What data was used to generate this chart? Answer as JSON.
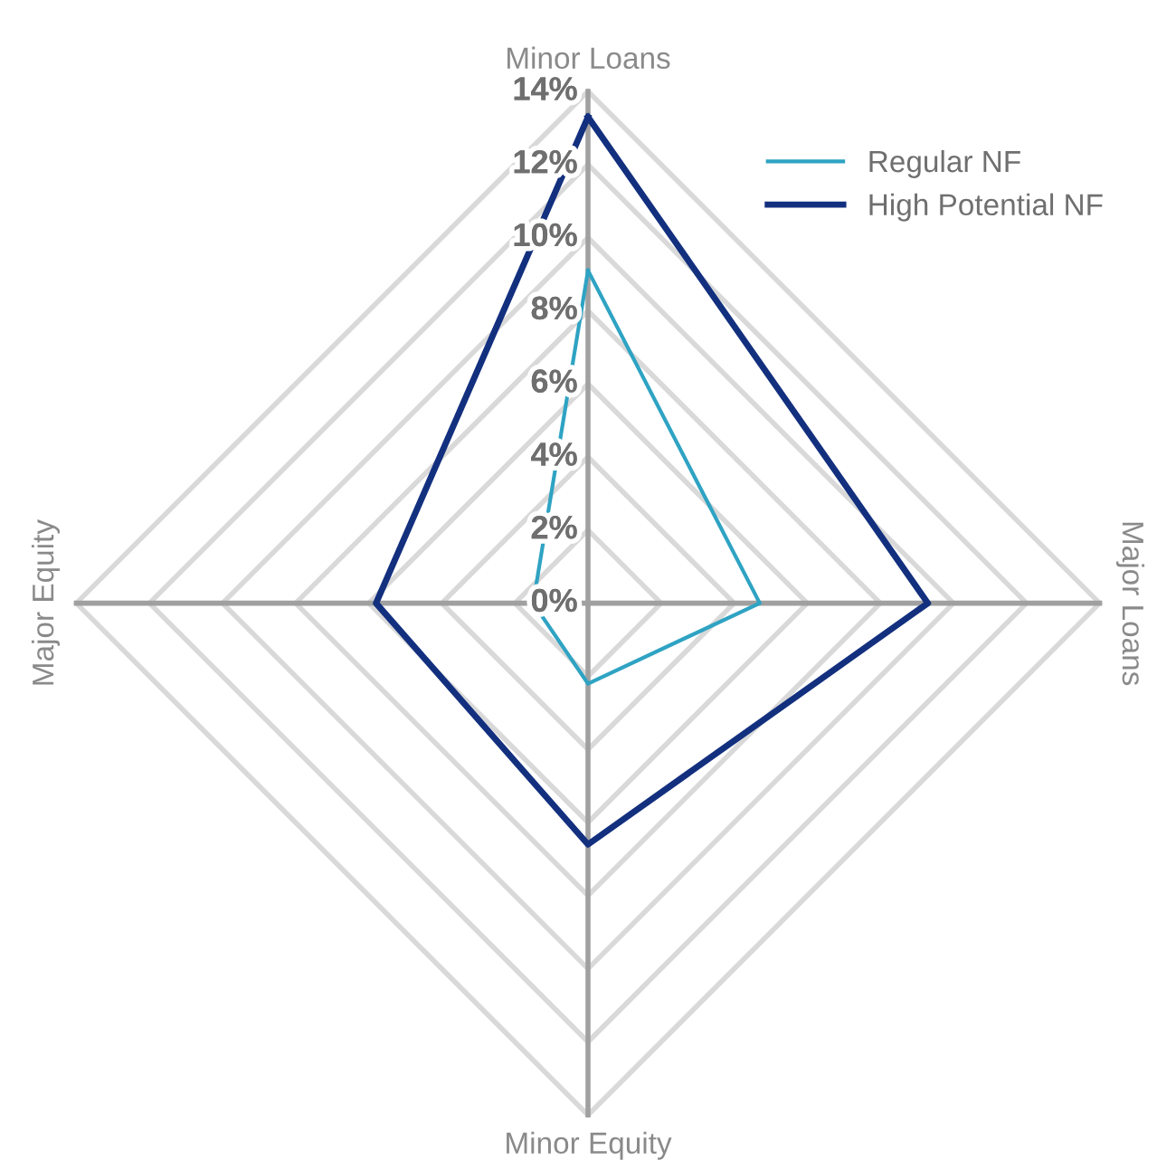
{
  "chart_data": {
    "type": "radar",
    "categories": [
      "Minor Loans",
      "Major Loans",
      "Minor Equity",
      "Major Equity"
    ],
    "series": [
      {
        "name": "Regular NF",
        "color": "#2fa3c3",
        "values": [
          9.1,
          4.7,
          2.2,
          1.5
        ]
      },
      {
        "name": "High Potential NF",
        "color": "#13307f",
        "values": [
          13.3,
          9.3,
          6.6,
          5.8
        ]
      }
    ],
    "ylim": [
      0,
      14
    ],
    "yticks": [
      {
        "value": 0,
        "label": "0%"
      },
      {
        "value": 2,
        "label": "2%"
      },
      {
        "value": 4,
        "label": "4%"
      },
      {
        "value": 6,
        "label": "6%"
      },
      {
        "value": 8,
        "label": "8%"
      },
      {
        "value": 10,
        "label": "10%"
      },
      {
        "value": 12,
        "label": "12%"
      },
      {
        "value": 14,
        "label": "14%"
      }
    ],
    "grid": true,
    "legend": "top right"
  }
}
